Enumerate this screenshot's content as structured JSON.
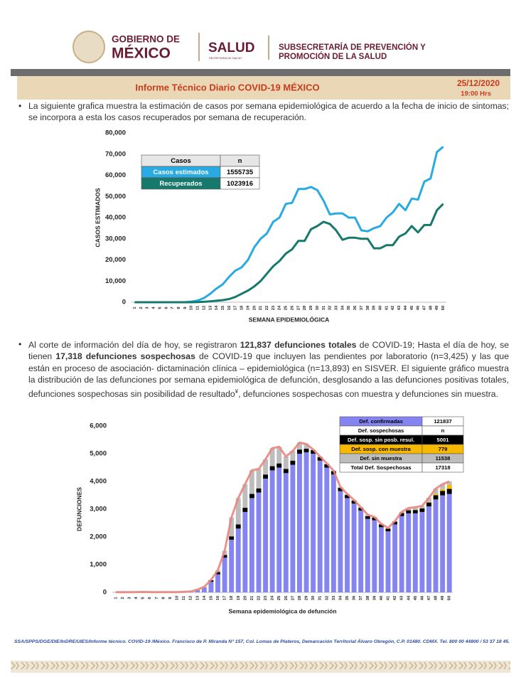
{
  "header": {
    "gov_line1": "GOBIERNO DE",
    "gov_line2": "MÉXICO",
    "salud": "SALUD",
    "salud_sub": "SECRETARÍA DE SALUD",
    "subsecretaria_line1": "SUBSECRETARÍA DE PREVENCIÓN Y",
    "subsecretaria_line2": "PROMOCIÓN DE LA SALUD"
  },
  "report": {
    "title": "Informe Técnico Diario COVID-19 MÉXICO",
    "date": "25/12/2020",
    "time": "19:00 Hrs"
  },
  "paragraphs": [
    {
      "runs": [
        {
          "text": "La siguiente grafica muestra la estimación de casos por semana epidemiológica de acuerdo a la fecha de inicio de sintomas; se incorpora a esta los casos recuperados por semana de recuperación.",
          "bold": false
        }
      ]
    },
    {
      "runs": [
        {
          "text": "Al corte de información del día de hoy, se registraron ",
          "bold": false
        },
        {
          "text": "121,837 defunciones totales",
          "bold": true
        },
        {
          "text": " de COVID-19; Hasta el día de hoy, se tienen ",
          "bold": false
        },
        {
          "text": "17,318 defunciones sospechosas",
          "bold": true
        },
        {
          "text": " de COVID-19 que incluyen las pendientes por laboratorio (n=3,425) y las que están en proceso de asociación- dictaminación clínica – epidemiológica (n=13,893) en SISVER. El siguiente gráfico muestra la distribución de las defunciones por semana epidemiológica de defunción, desglosando a las defunciones positivas totales, defunciones sospechosas sin posibilidad de resultado",
          "bold": false
        },
        {
          "text": "¥",
          "bold": false,
          "sup": true
        },
        {
          "text": ", defunciones sospechosas con muestra y defunciones sin muestra.",
          "bold": false
        }
      ]
    }
  ],
  "chart_data": [
    {
      "type": "line",
      "y_label": "CASOS ESTIMADOS",
      "x_label": "SEMANA EPIDEMIOLÓGICA",
      "categories": [
        1,
        2,
        3,
        4,
        5,
        6,
        7,
        8,
        9,
        10,
        11,
        12,
        13,
        14,
        15,
        16,
        17,
        18,
        19,
        20,
        21,
        22,
        23,
        24,
        25,
        26,
        27,
        28,
        29,
        30,
        31,
        32,
        33,
        34,
        35,
        36,
        37,
        38,
        39,
        40,
        41,
        42,
        43,
        44,
        45,
        46,
        47,
        48,
        49,
        50
      ],
      "ylim": [
        0,
        80000
      ],
      "yticks": [
        0,
        {
          "value": 10000,
          "label": "10,000"
        },
        {
          "value": 20000,
          "label": "20,000"
        },
        {
          "value": 30000,
          "label": "30,000"
        },
        {
          "value": 40000,
          "label": "40,000"
        },
        {
          "value": 50000,
          "label": "50,000"
        },
        {
          "value": 60000,
          "label": "60,000"
        },
        {
          "value": 70000,
          "label": "70,000"
        },
        {
          "value": 80000,
          "label": "80,000"
        }
      ],
      "table_header": [
        "Casos",
        "n"
      ],
      "series": [
        {
          "name": "Casos estimados",
          "color": "#2aaae2",
          "total": 1555735,
          "values": [
            0,
            0,
            0,
            0,
            0,
            0,
            0,
            0,
            0,
            300,
            800,
            2000,
            4000,
            6500,
            8500,
            12000,
            15000,
            16500,
            20000,
            26000,
            30000,
            32500,
            38000,
            40000,
            46500,
            47000,
            53500,
            53500,
            54500,
            53000,
            48000,
            41500,
            42000,
            42000,
            40000,
            40000,
            34000,
            33500,
            35000,
            36000,
            40000,
            42500,
            46500,
            43500,
            49000,
            48500,
            57000,
            58500,
            71000,
            73500
          ]
        },
        {
          "name": "Recuperados",
          "color": "#17786c",
          "total": 1023916,
          "values": [
            0,
            0,
            0,
            0,
            0,
            0,
            0,
            0,
            0,
            0,
            100,
            200,
            400,
            700,
            1000,
            1500,
            2500,
            4000,
            5500,
            7500,
            10000,
            13500,
            17000,
            19500,
            23000,
            25000,
            29000,
            29000,
            34500,
            36000,
            38000,
            37000,
            34000,
            29500,
            30500,
            30500,
            30000,
            30000,
            25500,
            25500,
            27000,
            27000,
            31000,
            32500,
            36000,
            33000,
            36500,
            36500,
            43500,
            46500
          ]
        }
      ]
    },
    {
      "type": "bar",
      "stacked": true,
      "line_color": "#e8877f",
      "y_label": "DEFUNCIONES",
      "x_label": "Semana epidemiológica de defunción",
      "categories": [
        1,
        2,
        3,
        4,
        5,
        6,
        7,
        8,
        9,
        10,
        11,
        12,
        13,
        14,
        15,
        16,
        17,
        18,
        19,
        20,
        21,
        22,
        23,
        24,
        25,
        26,
        27,
        28,
        29,
        30,
        31,
        32,
        33,
        34,
        35,
        36,
        37,
        38,
        39,
        40,
        41,
        42,
        43,
        44,
        45,
        46,
        47,
        48,
        49,
        50
      ],
      "ylim": [
        0,
        6000
      ],
      "yticks": [
        0,
        {
          "value": 1000,
          "label": "1,000"
        },
        {
          "value": 2000,
          "label": "2,000"
        },
        {
          "value": 3000,
          "label": "3,000"
        },
        {
          "value": 4000,
          "label": "4,000"
        },
        {
          "value": 5000,
          "label": "5,000"
        },
        {
          "value": 6000,
          "label": "6,000"
        }
      ],
      "table_header": [
        "Def. sospechosas",
        "n"
      ],
      "table_footer": [
        "Total Def. Sospechosas",
        17318
      ],
      "series": [
        {
          "name": "Def. confirmadas",
          "color": "#8585f2",
          "text_color": "#000000",
          "total": 121837,
          "values": [
            5,
            10,
            5,
            10,
            15,
            10,
            5,
            10,
            10,
            10,
            20,
            30,
            80,
            180,
            380,
            650,
            1250,
            1900,
            2300,
            2900,
            3400,
            3600,
            4100,
            4400,
            4500,
            4300,
            4600,
            5000,
            5050,
            5000,
            4750,
            4500,
            4250,
            3650,
            3400,
            3200,
            2950,
            2650,
            2600,
            2350,
            2200,
            2450,
            2750,
            2850,
            2850,
            2900,
            3100,
            3350,
            3500,
            3550
          ]
        },
        {
          "name": "Def. sosp. sin posb. resul.",
          "color": "#000000",
          "text_color": "#ffffff",
          "total": 5001,
          "values": [
            0,
            0,
            0,
            0,
            0,
            0,
            0,
            0,
            0,
            0,
            0,
            0,
            0,
            0,
            60,
            80,
            100,
            120,
            150,
            150,
            150,
            150,
            150,
            150,
            150,
            150,
            150,
            150,
            130,
            130,
            130,
            120,
            120,
            120,
            110,
            110,
            100,
            100,
            100,
            100,
            100,
            100,
            110,
            110,
            120,
            130,
            140,
            150,
            160,
            180
          ]
        },
        {
          "name": "Def. sosp. con muestra",
          "color": "#f6b900",
          "text_color": "#000000",
          "total": 779,
          "values": [
            0,
            0,
            0,
            0,
            0,
            0,
            0,
            0,
            0,
            0,
            0,
            0,
            0,
            0,
            0,
            0,
            0,
            0,
            0,
            0,
            0,
            0,
            0,
            0,
            0,
            0,
            0,
            0,
            0,
            0,
            0,
            0,
            0,
            0,
            0,
            0,
            0,
            0,
            0,
            0,
            0,
            0,
            0,
            0,
            0,
            10,
            20,
            40,
            60,
            150
          ]
        },
        {
          "name": "Def. sin muestra",
          "color": "#bdbdbd",
          "text_color": "#000000",
          "total": 11538,
          "values": [
            0,
            0,
            0,
            0,
            0,
            0,
            0,
            0,
            0,
            0,
            0,
            0,
            20,
            20,
            10,
            70,
            150,
            680,
            950,
            850,
            850,
            700,
            550,
            650,
            600,
            450,
            350,
            250,
            170,
            20,
            20,
            30,
            20,
            30,
            40,
            20,
            20,
            50,
            20,
            20,
            20,
            20,
            40,
            80,
            100,
            80,
            150,
            200,
            180,
            120
          ]
        }
      ]
    }
  ],
  "footer": {
    "text": "SSA/SPPS/DGE/DIE/InDRE/UIES/Informe técnico. COVID-19 /México. Francisco de P. Miranda N° 157, Col. Lomas de Plateros, Demarcación Territorial Álvaro Obregón, C.P. 01480. CDMX. Tel. 800 00 44800 / 53 37 18 45."
  }
}
